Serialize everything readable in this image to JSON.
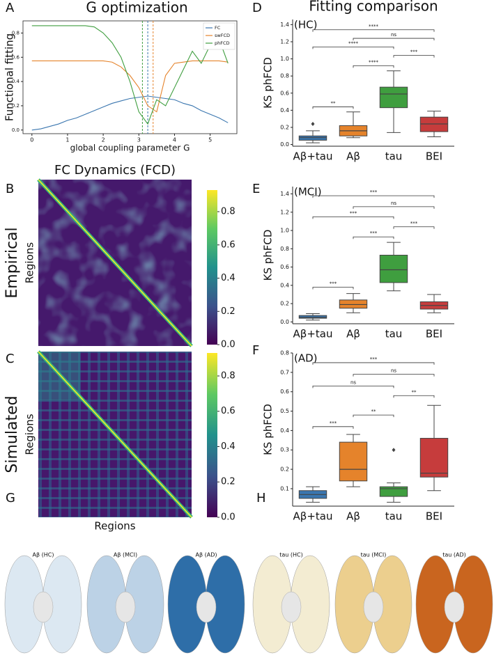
{
  "chart_data": [
    {
      "type": "line",
      "panel": "A",
      "title": "G optimization",
      "xlabel": "global coupling parameter G",
      "ylabel": "Functional fitting",
      "x": [
        0,
        0.25,
        0.5,
        0.75,
        1,
        1.25,
        1.5,
        1.75,
        2,
        2.25,
        2.5,
        2.75,
        3,
        3.25,
        3.5,
        3.75,
        4,
        4.25,
        4.5,
        4.75,
        5,
        5.25,
        5.5
      ],
      "series": [
        {
          "name": "FC",
          "color": "#3a76af",
          "values": [
            0.0,
            0.01,
            0.03,
            0.05,
            0.08,
            0.1,
            0.13,
            0.16,
            0.19,
            0.22,
            0.24,
            0.26,
            0.27,
            0.28,
            0.27,
            0.26,
            0.25,
            0.22,
            0.2,
            0.16,
            0.13,
            0.1,
            0.06
          ]
        },
        {
          "name": "swFCD",
          "color": "#e5832b",
          "values": [
            0.57,
            0.57,
            0.57,
            0.57,
            0.57,
            0.57,
            0.57,
            0.57,
            0.57,
            0.56,
            0.52,
            0.45,
            0.35,
            0.2,
            0.15,
            0.45,
            0.55,
            0.56,
            0.57,
            0.57,
            0.57,
            0.57,
            0.56
          ]
        },
        {
          "name": "phFCD",
          "color": "#3f9e3f",
          "values": [
            0.86,
            0.86,
            0.86,
            0.86,
            0.86,
            0.86,
            0.86,
            0.85,
            0.8,
            0.72,
            0.6,
            0.4,
            0.15,
            0.05,
            0.25,
            0.2,
            0.35,
            0.5,
            0.65,
            0.55,
            0.7,
            0.75,
            0.55
          ]
        }
      ],
      "vlines": [
        {
          "value": 3.1,
          "color": "#3f9e3f"
        },
        {
          "value": 3.25,
          "color": "#3a76af"
        },
        {
          "value": 3.4,
          "color": "#e5832b"
        }
      ],
      "xlim": [
        -0.25,
        5.75
      ],
      "ylim": [
        -0.03,
        0.9
      ],
      "xticks": [
        0,
        1,
        2,
        3,
        4,
        5
      ],
      "yticks": [
        {
          "value": 0,
          "label": "0.0"
        },
        0.2,
        0.4,
        0.6,
        0.8
      ],
      "legend": "upper right"
    },
    {
      "type": "box",
      "panel": "D",
      "title": "Fitting comparison",
      "annotation": "(HC)",
      "ylabel": "KS phFCD",
      "categories": [
        "Aβ+tau",
        "Aβ",
        "tau",
        "BEI"
      ],
      "colors": [
        "#3a76af",
        "#e5832b",
        "#3f9e3f",
        "#c63c3c"
      ],
      "boxes": [
        {
          "whislo": 0.02,
          "q1": 0.05,
          "med": 0.08,
          "q3": 0.1,
          "whishi": 0.16,
          "fliers": [
            0.24
          ]
        },
        {
          "whislo": 0.08,
          "q1": 0.1,
          "med": 0.16,
          "q3": 0.22,
          "whishi": 0.38,
          "fliers": []
        },
        {
          "whislo": 0.14,
          "q1": 0.43,
          "med": 0.59,
          "q3": 0.67,
          "whishi": 0.86,
          "fliers": []
        },
        {
          "whislo": 0.09,
          "q1": 0.15,
          "med": 0.24,
          "q3": 0.32,
          "whishi": 0.39,
          "fliers": []
        }
      ],
      "comparisons": [
        {
          "pair": [
            0,
            1
          ],
          "y": 0.44,
          "label": "**"
        },
        {
          "pair": [
            1,
            2
          ],
          "y": 0.92,
          "label": "****"
        },
        {
          "pair": [
            2,
            3
          ],
          "y": 1.04,
          "label": "***"
        },
        {
          "pair": [
            0,
            2
          ],
          "y": 1.14,
          "label": "****"
        },
        {
          "pair": [
            1,
            3
          ],
          "y": 1.24,
          "label": "ns"
        },
        {
          "pair": [
            0,
            3
          ],
          "y": 1.34,
          "label": "****"
        }
      ],
      "ylim": [
        -0.02,
        1.46
      ],
      "yticks": [
        {
          "value": 0,
          "label": "0.0"
        },
        0.2,
        0.4,
        0.6,
        0.8,
        {
          "value": 1,
          "label": "1.0"
        },
        1.2,
        1.4
      ]
    },
    {
      "type": "box",
      "panel": "E",
      "annotation": "(MCI)",
      "ylabel": "KS phFCD",
      "categories": [
        "Aβ+tau",
        "Aβ",
        "tau",
        "BEI"
      ],
      "colors": [
        "#3a76af",
        "#e5832b",
        "#3f9e3f",
        "#c63c3c"
      ],
      "boxes": [
        {
          "whislo": 0.02,
          "q1": 0.04,
          "med": 0.05,
          "q3": 0.07,
          "whishi": 0.09,
          "fliers": []
        },
        {
          "whislo": 0.1,
          "q1": 0.15,
          "med": 0.19,
          "q3": 0.24,
          "whishi": 0.31,
          "fliers": []
        },
        {
          "whislo": 0.34,
          "q1": 0.43,
          "med": 0.57,
          "q3": 0.73,
          "whishi": 0.87,
          "fliers": []
        },
        {
          "whislo": 0.1,
          "q1": 0.14,
          "med": 0.18,
          "q3": 0.22,
          "whishi": 0.3,
          "fliers": []
        }
      ],
      "comparisons": [
        {
          "pair": [
            0,
            1
          ],
          "y": 0.38,
          "label": "***"
        },
        {
          "pair": [
            1,
            2
          ],
          "y": 0.93,
          "label": "***"
        },
        {
          "pair": [
            2,
            3
          ],
          "y": 1.04,
          "label": "***"
        },
        {
          "pair": [
            0,
            2
          ],
          "y": 1.15,
          "label": "***"
        },
        {
          "pair": [
            1,
            3
          ],
          "y": 1.26,
          "label": "ns"
        },
        {
          "pair": [
            0,
            3
          ],
          "y": 1.38,
          "label": "***"
        }
      ],
      "ylim": [
        -0.02,
        1.48
      ],
      "yticks": [
        {
          "value": 0,
          "label": "0.0"
        },
        0.2,
        0.4,
        0.6,
        0.8,
        {
          "value": 1,
          "label": "1.0"
        },
        1.2,
        1.4
      ]
    },
    {
      "type": "box",
      "panel": "F",
      "annotation": "(AD)",
      "ylabel": "KS phFCD",
      "categories": [
        "Aβ+tau",
        "Aβ",
        "tau",
        "BEI"
      ],
      "colors": [
        "#3a76af",
        "#e5832b",
        "#3f9e3f",
        "#c63c3c"
      ],
      "boxes": [
        {
          "whislo": 0.03,
          "q1": 0.05,
          "med": 0.07,
          "q3": 0.09,
          "whishi": 0.11,
          "fliers": []
        },
        {
          "whislo": 0.11,
          "q1": 0.14,
          "med": 0.2,
          "q3": 0.34,
          "whishi": 0.38,
          "fliers": []
        },
        {
          "whislo": 0.03,
          "q1": 0.06,
          "med": 0.1,
          "q3": 0.11,
          "whishi": 0.13,
          "fliers": [
            0.3
          ]
        },
        {
          "whislo": 0.09,
          "q1": 0.16,
          "med": 0.18,
          "q3": 0.36,
          "whishi": 0.53,
          "fliers": []
        }
      ],
      "comparisons": [
        {
          "pair": [
            0,
            1
          ],
          "y": 0.42,
          "label": "***"
        },
        {
          "pair": [
            1,
            2
          ],
          "y": 0.48,
          "label": "**"
        },
        {
          "pair": [
            2,
            3
          ],
          "y": 0.58,
          "label": "**"
        },
        {
          "pair": [
            0,
            2
          ],
          "y": 0.63,
          "label": "ns"
        },
        {
          "pair": [
            1,
            3
          ],
          "y": 0.69,
          "label": "ns"
        },
        {
          "pair": [
            0,
            3
          ],
          "y": 0.75,
          "label": "***"
        }
      ],
      "ylim": [
        0.01,
        0.8
      ],
      "yticks": [
        0.1,
        0.2,
        0.3,
        0.4,
        0.5,
        0.6,
        0.7,
        0.8
      ]
    },
    {
      "type": "heatmap",
      "panel": "B",
      "title": "FC Dynamics (FCD)",
      "row_label": "Empirical",
      "ylabel": "Regions",
      "clim": [
        0,
        0.93
      ],
      "cticks": [
        {
          "value": 0,
          "label": "0.0"
        },
        0.2,
        0.4,
        0.6,
        0.8
      ]
    },
    {
      "type": "heatmap",
      "panel": "C",
      "row_label": "Simulated",
      "ylabel": "Regions",
      "xlabel": "Regions",
      "clim": [
        0,
        0.93
      ],
      "cticks": [
        {
          "value": 0,
          "label": "0.0"
        },
        0.2,
        0.4,
        0.6,
        0.8
      ]
    }
  ],
  "brains": [
    {
      "panel": "G",
      "labels": [
        "Aβ (HC)",
        "Aβ (MCI)",
        "Aβ (AD)"
      ]
    },
    {
      "panel": "H",
      "labels": [
        "tau (HC)",
        "tau (MCI)",
        "tau (AD)"
      ]
    }
  ]
}
